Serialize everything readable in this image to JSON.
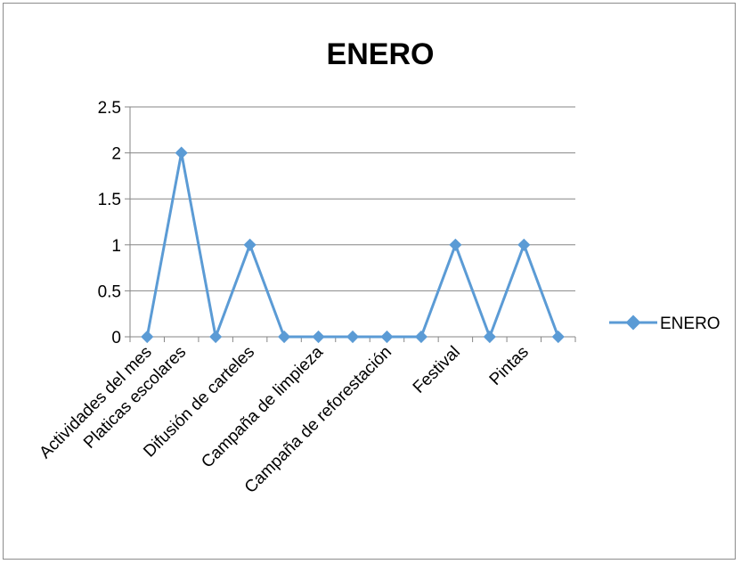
{
  "chart_data": {
    "type": "line",
    "title": "ENERO",
    "xlabel": "",
    "ylabel": "",
    "ylim": [
      0,
      2.5
    ],
    "yticks": [
      "0",
      "0.5",
      "1",
      "1.5",
      "2",
      "2.5"
    ],
    "categories": [
      "Actividades del mes",
      "Platicas escolares",
      "",
      "Difusión de carteles",
      "",
      "Campaña de limpieza",
      "",
      "Campaña de reforestación",
      "",
      "Festival",
      "",
      "Pintas",
      ""
    ],
    "series": [
      {
        "name": "ENERO",
        "values": [
          0,
          2,
          0,
          1,
          0,
          0,
          0,
          0,
          0,
          1,
          0,
          1,
          0
        ]
      }
    ],
    "grid": true,
    "legend": "right",
    "colors": {
      "series": "#5b9bd5",
      "grid": "#868686",
      "axis": "#868686"
    }
  }
}
